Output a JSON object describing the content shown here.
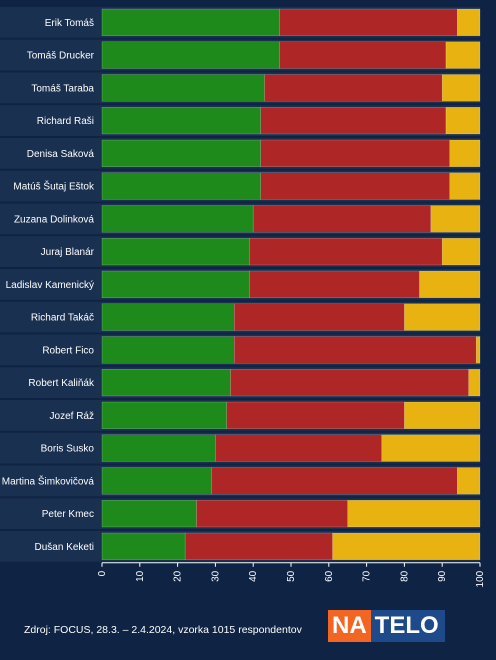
{
  "chart_data": {
    "type": "bar",
    "orientation": "horizontal",
    "stacked": true,
    "categories": [
      "Erik Tomáš",
      "Tomáš Drucker",
      "Tomáš Taraba",
      "Richard Raši",
      "Denisa Saková",
      "Matúš Šutaj Eštok",
      "Zuzana Dolinková",
      "Juraj Blanár",
      "Ladislav Kamenický",
      "Richard Takáč",
      "Robert Fico",
      "Robert Kaliňák",
      "Jozef Ráž",
      "Boris Susko",
      "Martina Šimkovičová",
      "Peter Kmec",
      "Dušan Keketi"
    ],
    "series": [
      {
        "color": "#1f8a1c",
        "values": [
          47,
          47,
          43,
          42,
          42,
          42,
          40,
          39,
          39,
          35,
          35,
          34,
          33,
          30,
          29,
          25,
          22
        ]
      },
      {
        "color": "#ae2626",
        "values": [
          47,
          44,
          47,
          49,
          50,
          50,
          47,
          51,
          45,
          45,
          64,
          63,
          47,
          44,
          65,
          40,
          39
        ]
      },
      {
        "color": "#e8b310",
        "values": [
          6,
          9,
          10,
          9,
          8,
          8,
          13,
          10,
          16,
          20,
          1,
          3,
          20,
          26,
          6,
          35,
          39
        ]
      }
    ],
    "xlim": [
      0,
      100
    ],
    "xticks": [
      0,
      10,
      20,
      30,
      40,
      50,
      60,
      70,
      80,
      90,
      100
    ],
    "grid": false,
    "legend": "none"
  },
  "footer": {
    "source": "Zdroj: FOCUS, 28.3. – 2.4.2024, vzorka 1015 respondentov"
  },
  "logo": {
    "part1": "NA",
    "part2": "TELO",
    "color1": "#f26522",
    "color2": "#1e4a8a"
  },
  "colors": {
    "background": "#0f2344",
    "row_band": "#1a3050"
  }
}
